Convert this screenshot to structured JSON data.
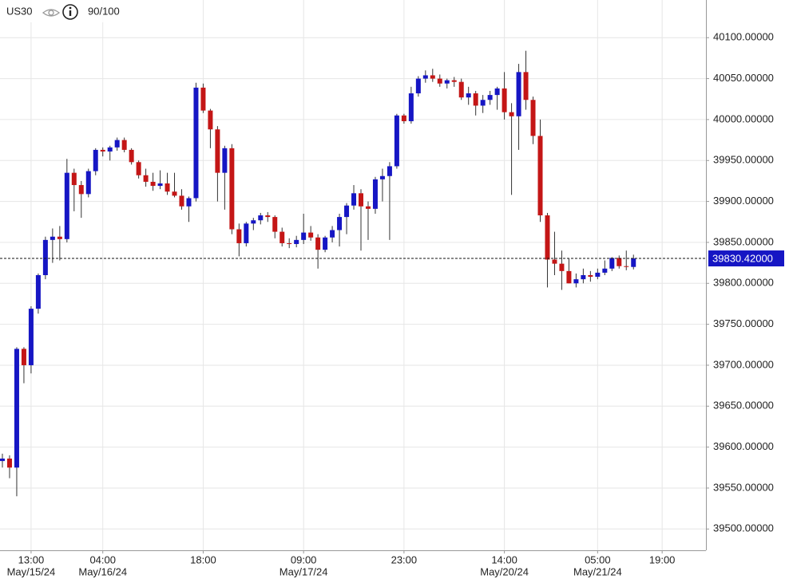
{
  "header": {
    "symbol": "US30",
    "score": "90/100"
  },
  "chart_data": {
    "type": "candlestick",
    "up_color": "#1616c4",
    "down_color": "#c41616",
    "wick_color": "#333333",
    "grid": true,
    "ylim": [
      39474,
      40146
    ],
    "yticks": [
      {
        "value": 39500,
        "label": "39500.00000"
      },
      {
        "value": 39550,
        "label": "39550.00000"
      },
      {
        "value": 39600,
        "label": "39600.00000"
      },
      {
        "value": 39650,
        "label": "39650.00000"
      },
      {
        "value": 39700,
        "label": "39700.00000"
      },
      {
        "value": 39750,
        "label": "39750.00000"
      },
      {
        "value": 39800,
        "label": "39800.00000"
      },
      {
        "value": 39850,
        "label": "39850.00000"
      },
      {
        "value": 39900,
        "label": "39900.00000"
      },
      {
        "value": 39950,
        "label": "39950.00000"
      },
      {
        "value": 40000,
        "label": "40000.00000"
      },
      {
        "value": 40050,
        "label": "40050.00000"
      },
      {
        "value": 40100,
        "label": "40100.00000"
      }
    ],
    "last_price": {
      "value": 39830.42,
      "label": "39830.42000",
      "color": "#1616c4"
    },
    "categories": [
      null,
      null,
      null,
      null,
      "13:00",
      null,
      null,
      null,
      null,
      null,
      null,
      null,
      null,
      null,
      "04:00",
      null,
      null,
      null,
      null,
      null,
      null,
      null,
      null,
      null,
      null,
      null,
      null,
      null,
      "18:00",
      null,
      null,
      null,
      null,
      null,
      null,
      null,
      null,
      null,
      null,
      null,
      null,
      null,
      "09:00",
      null,
      null,
      null,
      null,
      null,
      null,
      null,
      null,
      null,
      null,
      null,
      null,
      null,
      "23:00",
      null,
      null,
      null,
      null,
      null,
      null,
      null,
      null,
      null,
      null,
      null,
      null,
      null,
      "14:00",
      null,
      null,
      null,
      null,
      null,
      null,
      null,
      null,
      null,
      null,
      null,
      null,
      "05:00",
      null,
      null,
      null,
      null,
      null,
      null,
      null,
      null,
      "19:00",
      null,
      null,
      null,
      null,
      null
    ],
    "date_labels": [
      null,
      null,
      null,
      null,
      "May/15/24",
      null,
      null,
      null,
      null,
      null,
      null,
      null,
      null,
      null,
      "May/16/24",
      null,
      null,
      null,
      null,
      null,
      null,
      null,
      null,
      null,
      null,
      null,
      null,
      null,
      null,
      null,
      null,
      null,
      null,
      null,
      null,
      null,
      null,
      null,
      null,
      null,
      null,
      null,
      "May/17/24",
      null,
      null,
      null,
      null,
      null,
      null,
      null,
      null,
      null,
      null,
      null,
      null,
      null,
      null,
      null,
      null,
      null,
      null,
      null,
      null,
      null,
      null,
      null,
      null,
      null,
      null,
      null,
      "May/20/24",
      null,
      null,
      null,
      null,
      null,
      null,
      null,
      null,
      null,
      null,
      null,
      null,
      "May/21/24",
      null,
      null,
      null,
      null,
      null,
      null,
      null,
      null,
      null,
      null,
      null,
      null,
      null,
      null
    ],
    "open": [
      39583,
      39586,
      39575,
      39720,
      39700,
      39769,
      39810,
      39853,
      39857,
      39854,
      39935,
      39920,
      39909,
      39937,
      39963,
      39961,
      39966,
      39975,
      39963,
      39948,
      39932,
      39924,
      39919,
      39922,
      39912,
      39907,
      39894,
      39904,
      40039,
      40011,
      39988,
      39935,
      39965,
      39866,
      39849,
      39873,
      39877,
      39883,
      39881,
      39863,
      39849,
      39848,
      39853,
      39862,
      39856,
      39841,
      39856,
      39865,
      39881,
      39895,
      39910,
      39894,
      39891,
      39927,
      39931,
      39943,
      40005,
      39998,
      40032,
      40050,
      40054,
      40050,
      40044,
      40048,
      40046,
      40027,
      40032,
      40017,
      40024,
      40030,
      40038,
      40009,
      40004,
      40058,
      40024,
      39980,
      39883,
      39829,
      39824,
      39815,
      39800,
      39805,
      39810,
      39808,
      39813,
      39818,
      39831,
      39821,
      39820,
      null,
      null,
      null,
      null,
      null,
      null,
      null,
      null,
      null
    ],
    "high": [
      39592,
      39590,
      39722,
      39722,
      39772,
      39812,
      39857,
      39867,
      39870,
      39952,
      39940,
      39925,
      39940,
      39965,
      39966,
      39968,
      39978,
      39978,
      39965,
      39950,
      39940,
      39935,
      39938,
      39935,
      39935,
      39915,
      39906,
      40045,
      40044,
      40013,
      39992,
      39968,
      39970,
      39873,
      39875,
      39880,
      39886,
      39887,
      39883,
      39868,
      39855,
      39858,
      39885,
      39870,
      39860,
      39858,
      39870,
      39885,
      39898,
      39920,
      39915,
      39900,
      39930,
      39940,
      39948,
      40007,
      40007,
      40040,
      40053,
      40060,
      40062,
      40055,
      40050,
      40052,
      40050,
      40040,
      40035,
      40030,
      40035,
      40040,
      40058,
      40020,
      40068,
      40084,
      40028,
      40000,
      39886,
      39863,
      39840,
      39830,
      39812,
      39818,
      39815,
      39818,
      39828,
      39832,
      39834,
      39840,
      39835,
      null,
      null,
      null,
      null,
      null,
      null,
      null,
      null,
      null
    ],
    "low": [
      39575,
      39562,
      39540,
      39678,
      39690,
      39763,
      39805,
      39825,
      39828,
      39850,
      39888,
      39880,
      39905,
      39932,
      39955,
      39950,
      39962,
      39960,
      39945,
      39928,
      39918,
      39913,
      39915,
      39908,
      39905,
      39890,
      39875,
      39900,
      40008,
      39965,
      39900,
      39890,
      39860,
      39833,
      39845,
      39865,
      39872,
      39875,
      39855,
      39845,
      39843,
      39844,
      39848,
      39852,
      39818,
      39838,
      39850,
      39845,
      39860,
      39890,
      39840,
      39853,
      39885,
      39900,
      39853,
      39940,
      39995,
      39995,
      40028,
      40045,
      40046,
      40040,
      40038,
      40040,
      40024,
      40018,
      40005,
      40008,
      40018,
      40012,
      40000,
      39908,
      39963,
      40012,
      39970,
      39875,
      39795,
      39810,
      39792,
      39800,
      39795,
      39800,
      39802,
      39805,
      39810,
      39815,
      39818,
      39816,
      39817,
      null,
      null,
      null,
      null,
      null,
      null,
      null,
      null,
      null
    ],
    "close": [
      39586,
      39575,
      39720,
      39700,
      39769,
      39810,
      39853,
      39857,
      39854,
      39935,
      39920,
      39909,
      39937,
      39963,
      39961,
      39966,
      39975,
      39963,
      39948,
      39932,
      39924,
      39919,
      39922,
      39912,
      39907,
      39894,
      39904,
      40039,
      40011,
      39988,
      39935,
      39965,
      39866,
      39849,
      39873,
      39877,
      39883,
      39881,
      39863,
      39849,
      39848,
      39853,
      39862,
      39856,
      39841,
      39856,
      39865,
      39881,
      39895,
      39910,
      39894,
      39891,
      39927,
      39931,
      39943,
      40005,
      39998,
      40032,
      40050,
      40054,
      40050,
      40044,
      40048,
      40046,
      40027,
      40032,
      40017,
      40024,
      40030,
      40038,
      40009,
      40004,
      40058,
      40024,
      39980,
      39883,
      39829,
      39824,
      39815,
      39800,
      39805,
      39810,
      39808,
      39813,
      39818,
      39831,
      39821,
      39820,
      39830.42,
      null,
      null,
      null,
      null,
      null,
      null,
      null,
      null,
      null
    ]
  }
}
